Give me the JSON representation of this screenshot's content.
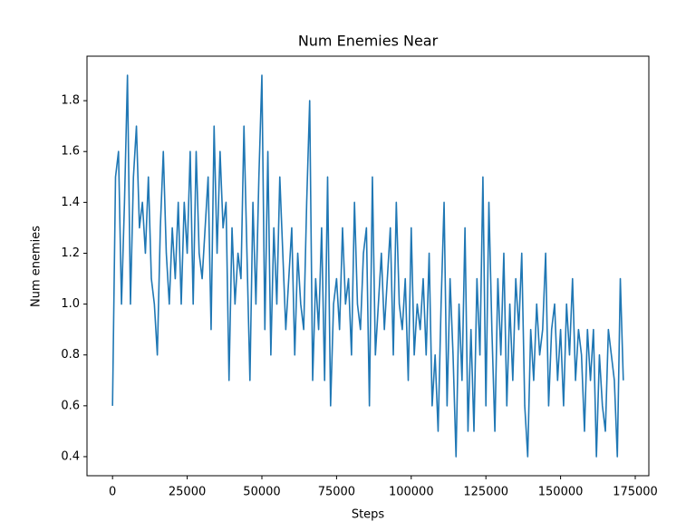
{
  "chart_data": {
    "type": "line",
    "title": "Num Enemies Near",
    "x_label": "Steps",
    "y_label": "Num enemies",
    "x": [
      0,
      1000,
      2000,
      3000,
      4000,
      5000,
      6000,
      7000,
      8000,
      9000,
      10000,
      11000,
      12000,
      13000,
      14000,
      15000,
      16000,
      17000,
      18000,
      19000,
      20000,
      21000,
      22000,
      23000,
      24000,
      25000,
      26000,
      27000,
      28000,
      29000,
      30000,
      31000,
      32000,
      33000,
      34000,
      35000,
      36000,
      37000,
      38000,
      39000,
      40000,
      41000,
      42000,
      43000,
      44000,
      45000,
      46000,
      47000,
      48000,
      49000,
      50000,
      51000,
      52000,
      53000,
      54000,
      55000,
      56000,
      57000,
      58000,
      59000,
      60000,
      61000,
      62000,
      63000,
      64000,
      65000,
      66000,
      67000,
      68000,
      69000,
      70000,
      71000,
      72000,
      73000,
      74000,
      75000,
      76000,
      77000,
      78000,
      79000,
      80000,
      81000,
      82000,
      83000,
      84000,
      85000,
      86000,
      87000,
      88000,
      89000,
      90000,
      91000,
      92000,
      93000,
      94000,
      95000,
      96000,
      97000,
      98000,
      99000,
      100000,
      101000,
      102000,
      103000,
      104000,
      105000,
      106000,
      107000,
      108000,
      109000,
      110000,
      111000,
      112000,
      113000,
      114000,
      115000,
      116000,
      117000,
      118000,
      119000,
      120000,
      121000,
      122000,
      123000,
      124000,
      125000,
      126000,
      127000,
      128000,
      129000,
      130000,
      131000,
      132000,
      133000,
      134000,
      135000,
      136000,
      137000,
      138000,
      139000,
      140000,
      141000,
      142000,
      143000,
      144000,
      145000,
      146000,
      147000,
      148000,
      149000,
      150000,
      151000,
      152000,
      153000,
      154000,
      155000,
      156000,
      157000,
      158000,
      159000,
      160000,
      161000,
      162000,
      163000,
      164000,
      165000,
      166000,
      167000,
      168000,
      169000,
      170000,
      171000
    ],
    "series": [
      {
        "name": "Num enemies",
        "color": "#1f77b4",
        "values": [
          0.6,
          1.5,
          1.6,
          1.0,
          1.4,
          1.9,
          1.0,
          1.5,
          1.7,
          1.3,
          1.4,
          1.2,
          1.5,
          1.1,
          1.0,
          0.8,
          1.3,
          1.6,
          1.2,
          1.0,
          1.3,
          1.1,
          1.4,
          1.0,
          1.4,
          1.2,
          1.6,
          1.0,
          1.6,
          1.2,
          1.1,
          1.3,
          1.5,
          0.9,
          1.7,
          1.2,
          1.6,
          1.3,
          1.4,
          0.7,
          1.3,
          1.0,
          1.2,
          1.1,
          1.7,
          1.2,
          0.7,
          1.4,
          1.0,
          1.5,
          1.9,
          0.9,
          1.6,
          0.8,
          1.3,
          1.0,
          1.5,
          1.2,
          0.9,
          1.1,
          1.3,
          0.8,
          1.2,
          1.0,
          0.9,
          1.4,
          1.8,
          0.7,
          1.1,
          0.9,
          1.3,
          0.7,
          1.5,
          0.6,
          1.0,
          1.1,
          0.9,
          1.3,
          1.0,
          1.1,
          0.8,
          1.4,
          1.0,
          0.9,
          1.2,
          1.3,
          0.6,
          1.5,
          0.8,
          1.0,
          1.2,
          0.9,
          1.1,
          1.3,
          0.8,
          1.4,
          1.0,
          0.9,
          1.1,
          0.7,
          1.3,
          0.8,
          1.0,
          0.9,
          1.1,
          0.8,
          1.2,
          0.6,
          0.8,
          0.5,
          1.0,
          1.4,
          0.6,
          1.1,
          0.8,
          0.4,
          1.0,
          0.7,
          1.3,
          0.5,
          0.9,
          0.5,
          1.1,
          0.8,
          1.5,
          0.6,
          1.4,
          0.9,
          0.5,
          1.1,
          0.8,
          1.2,
          0.6,
          1.0,
          0.7,
          1.1,
          0.9,
          1.2,
          0.6,
          0.4,
          0.9,
          0.7,
          1.0,
          0.8,
          0.9,
          1.2,
          0.6,
          0.9,
          1.0,
          0.7,
          0.9,
          0.6,
          1.0,
          0.8,
          1.1,
          0.7,
          0.9,
          0.8,
          0.5,
          0.9,
          0.7,
          0.9,
          0.4,
          0.8,
          0.6,
          0.5,
          0.9,
          0.8,
          0.7,
          0.4,
          1.1,
          0.7
        ]
      }
    ],
    "xlim": [
      -8550,
      179550
    ],
    "ylim": [
      0.325,
      1.975
    ],
    "xticks": [
      0,
      25000,
      50000,
      75000,
      100000,
      125000,
      150000,
      175000
    ],
    "yticks": [
      0.4,
      0.6,
      0.8,
      {
        "value": 1,
        "label": "1.0"
      },
      1.2,
      1.4,
      1.6,
      1.8
    ]
  }
}
